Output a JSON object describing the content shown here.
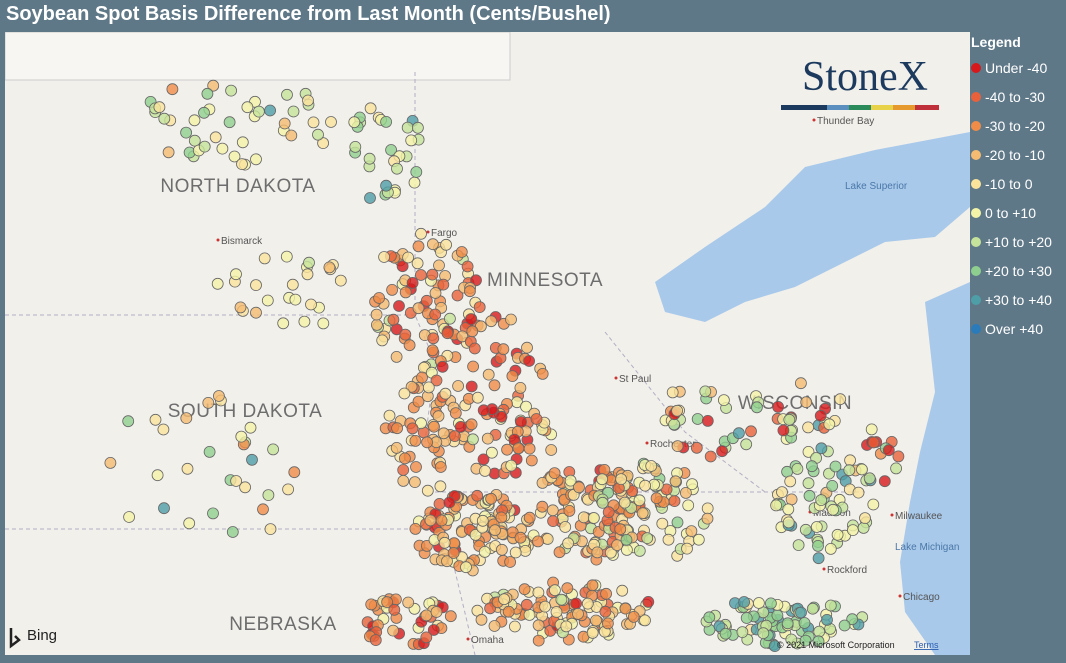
{
  "header": {
    "title": "Soybean Spot Basis Difference from Last Month (Cents/Bushel)"
  },
  "map": {
    "states": [
      "NORTH DAKOTA",
      "MINNESOTA",
      "SOUTH DAKOTA",
      "WISCONSIN",
      "NEBRASKA"
    ],
    "places": [
      "Bismarck",
      "Fargo",
      "St Paul",
      "Rochester",
      "Thunder Bay",
      "Madison",
      "Milwaukee",
      "Rockford",
      "Chicago",
      "Omaha"
    ],
    "water": [
      "Lake Superior",
      "Lake Michigan"
    ],
    "logo": "StoneX",
    "provider": "Bing",
    "copyright": "© 2021 Microsoft Corporation",
    "terms": "Terms"
  },
  "legend": {
    "title": "Legend",
    "items": [
      {
        "label": "Under -40",
        "color": "#d7191c"
      },
      {
        "label": "-40 to -30",
        "color": "#e9613a"
      },
      {
        "label": "-30 to -20",
        "color": "#ef8c47"
      },
      {
        "label": "-20 to -10",
        "color": "#f5bb72"
      },
      {
        "label": "-10 to 0",
        "color": "#fae49c"
      },
      {
        "label": "0 to +10",
        "color": "#f4f4a8"
      },
      {
        "label": "+10 to +20",
        "color": "#c5e39a"
      },
      {
        "label": "+20 to +30",
        "color": "#8ecf8f"
      },
      {
        "label": "+30 to +40",
        "color": "#4e9ea8"
      },
      {
        "label": "Over +40",
        "color": "#2b7bba"
      }
    ]
  }
}
